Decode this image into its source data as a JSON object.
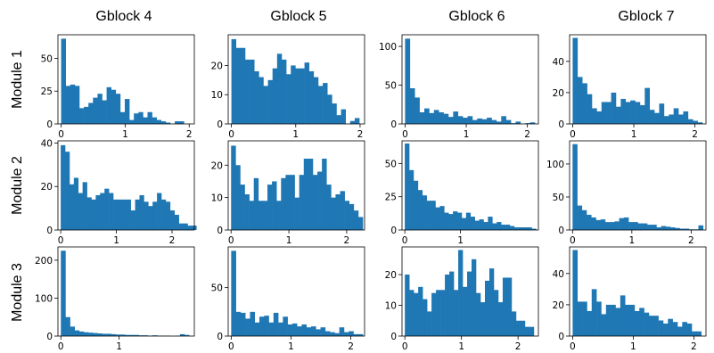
{
  "column_titles": [
    "Gblock 4",
    "Gblock 5",
    "Gblock 6",
    "Gblock 7"
  ],
  "row_labels": [
    "Module 1",
    "Module 2",
    "Module 3"
  ],
  "bar_color": "#1f77b4",
  "chart_data": [
    {
      "type": "bar",
      "row": 0,
      "col": 0,
      "bin_start": 0.0,
      "bin_width": 0.071,
      "values": [
        65,
        29,
        30,
        29,
        12,
        13,
        16,
        20,
        23,
        18,
        28,
        26,
        23,
        9,
        19,
        3,
        8,
        9,
        5,
        9,
        5,
        3,
        2,
        1,
        0,
        2,
        2
      ],
      "xlim": [
        -0.05,
        2.08
      ],
      "ylim": [
        0,
        68
      ],
      "xticks": [
        0,
        1,
        2
      ],
      "yticks": [
        0,
        25,
        50
      ]
    },
    {
      "type": "bar",
      "row": 0,
      "col": 1,
      "bin_start": 0.0,
      "bin_width": 0.071,
      "values": [
        29,
        26,
        26,
        22,
        22,
        18,
        16,
        13,
        15,
        19,
        24,
        22,
        17,
        20,
        19,
        19,
        21,
        18,
        16,
        13,
        14,
        10,
        7,
        3,
        5,
        0,
        1,
        2
      ],
      "xlim": [
        -0.05,
        2.07
      ],
      "ylim": [
        0,
        30.5
      ],
      "xticks": [
        0,
        1,
        2
      ],
      "yticks": [
        0,
        10,
        20
      ]
    },
    {
      "type": "bar",
      "row": 0,
      "col": 2,
      "bin_start": 0.0,
      "bin_width": 0.0786,
      "values": [
        110,
        46,
        34,
        15,
        20,
        14,
        18,
        15,
        13,
        9,
        16,
        10,
        8,
        10,
        5,
        7,
        6,
        8,
        5,
        3,
        10,
        5,
        1,
        3,
        0,
        1,
        2
      ],
      "xlim": [
        -0.05,
        2.18
      ],
      "ylim": [
        0,
        115
      ],
      "xticks": [
        0,
        1,
        2
      ],
      "yticks": [
        0,
        50,
        100
      ]
    },
    {
      "type": "bar",
      "row": 0,
      "col": 3,
      "bin_start": 0.0,
      "bin_width": 0.0786,
      "values": [
        55,
        30,
        26,
        19,
        10,
        8,
        14,
        14,
        20,
        11,
        16,
        14,
        15,
        14,
        12,
        23,
        9,
        7,
        13,
        5,
        6,
        10,
        6,
        8,
        3,
        2,
        1
      ],
      "xlim": [
        -0.05,
        2.18
      ],
      "ylim": [
        0,
        57
      ],
      "xticks": [
        0,
        1,
        2
      ],
      "yticks": [
        0,
        20,
        40
      ]
    },
    {
      "type": "bar",
      "row": 1,
      "col": 0,
      "bin_start": 0.0,
      "bin_width": 0.0786,
      "values": [
        39,
        36,
        21,
        24,
        17,
        22,
        15,
        14,
        16,
        17,
        19,
        17,
        14,
        14,
        14,
        14,
        9,
        14,
        16,
        13,
        11,
        13,
        17,
        14,
        13,
        9,
        7,
        3,
        3,
        2,
        2
      ],
      "xlim": [
        -0.05,
        2.4
      ],
      "ylim": [
        0,
        41
      ],
      "xticks": [
        0,
        1,
        2
      ],
      "yticks": [
        0,
        20,
        40
      ]
    },
    {
      "type": "bar",
      "row": 1,
      "col": 1,
      "bin_start": 0.0,
      "bin_width": 0.0786,
      "values": [
        26,
        20,
        14,
        11,
        9,
        16,
        9,
        9,
        14,
        15,
        9,
        16,
        17,
        17,
        10,
        17,
        22,
        22,
        17,
        18,
        22,
        14,
        10,
        11,
        12,
        9,
        8,
        6,
        4
      ],
      "xlim": [
        -0.05,
        2.31
      ],
      "ylim": [
        0,
        27.5
      ],
      "xticks": [
        0,
        1,
        2
      ],
      "yticks": [
        0,
        10,
        20
      ]
    },
    {
      "type": "bar",
      "row": 1,
      "col": 2,
      "bin_start": 0.0,
      "bin_width": 0.0786,
      "values": [
        65,
        45,
        37,
        30,
        26,
        22,
        22,
        17,
        18,
        13,
        12,
        14,
        13,
        9,
        13,
        10,
        7,
        8,
        6,
        10,
        5,
        6,
        4,
        4,
        3,
        2,
        2,
        2,
        2,
        1
      ],
      "xlim": [
        -0.05,
        2.4
      ],
      "ylim": [
        0,
        67
      ],
      "xticks": [
        0,
        1
      ],
      "yticks": [
        0,
        25,
        50
      ]
    },
    {
      "type": "bar",
      "row": 1,
      "col": 3,
      "bin_start": 0.0,
      "bin_width": 0.0786,
      "values": [
        130,
        37,
        30,
        23,
        19,
        15,
        16,
        12,
        12,
        13,
        18,
        19,
        12,
        12,
        10,
        10,
        8,
        8,
        4,
        6,
        5,
        4,
        3,
        2,
        2,
        1,
        1,
        7
      ],
      "xlim": [
        -0.05,
        2.25
      ],
      "ylim": [
        0,
        135
      ],
      "xticks": [
        0,
        1,
        2
      ],
      "yticks": [
        0,
        50,
        100
      ]
    },
    {
      "type": "bar",
      "row": 2,
      "col": 0,
      "bin_start": 0.0,
      "bin_width": 0.0786,
      "values": [
        225,
        50,
        25,
        15,
        12,
        10,
        9,
        8,
        7,
        6,
        6,
        5,
        4,
        4,
        3,
        3,
        3,
        2,
        2,
        1,
        2,
        1,
        1,
        1,
        0,
        1,
        5,
        3
      ],
      "xlim": [
        -0.05,
        2.29
      ],
      "ylim": [
        0,
        235
      ],
      "xticks": [
        0,
        1
      ],
      "yticks": [
        0,
        100,
        200
      ]
    },
    {
      "type": "bar",
      "row": 2,
      "col": 1,
      "bin_start": 0.0,
      "bin_width": 0.0786,
      "values": [
        88,
        25,
        24,
        18,
        25,
        14,
        20,
        21,
        14,
        24,
        14,
        20,
        12,
        13,
        10,
        12,
        9,
        10,
        7,
        9,
        5,
        4,
        3,
        9,
        4,
        5,
        2,
        2
      ],
      "xlim": [
        -0.05,
        2.23
      ],
      "ylim": [
        0,
        92
      ],
      "xticks": [
        0,
        1,
        2
      ],
      "yticks": [
        0,
        50
      ]
    },
    {
      "type": "bar",
      "row": 2,
      "col": 2,
      "bin_start": 0.0,
      "bin_width": 0.0786,
      "values": [
        20,
        15,
        14,
        16,
        12,
        8,
        14,
        15,
        15,
        20,
        21,
        15,
        28,
        16,
        21,
        25,
        14,
        11,
        18,
        22,
        15,
        11,
        19,
        19,
        8,
        5,
        5,
        3,
        3
      ],
      "xlim": [
        -0.05,
        2.36
      ],
      "ylim": [
        0,
        29
      ],
      "xticks": [
        0,
        1,
        2
      ],
      "yticks": [
        0,
        10,
        20
      ]
    },
    {
      "type": "bar",
      "row": 2,
      "col": 3,
      "bin_start": 0.0,
      "bin_width": 0.0786,
      "values": [
        55,
        22,
        22,
        16,
        30,
        22,
        14,
        20,
        20,
        18,
        26,
        20,
        20,
        16,
        18,
        15,
        13,
        13,
        10,
        8,
        11,
        9,
        6,
        9,
        8,
        3,
        3
      ],
      "xlim": [
        -0.05,
        2.2
      ],
      "ylim": [
        0,
        57
      ],
      "xticks": [
        0,
        1,
        2
      ],
      "yticks": [
        0,
        20,
        40
      ]
    }
  ]
}
